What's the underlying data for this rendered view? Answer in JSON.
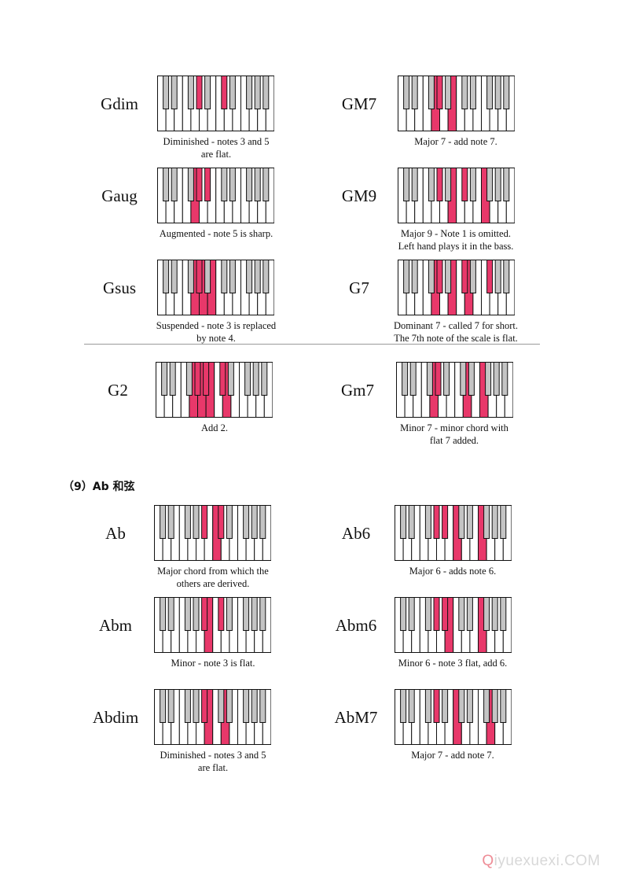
{
  "chords": [
    {
      "id": "gdim",
      "name": "Gdim",
      "caption": [
        "Diminished - notes 3 and 5",
        "are flat."
      ],
      "white_keys": [],
      "black_keys": [
        3,
        5
      ]
    },
    {
      "id": "gm7-major",
      "name": "GM7",
      "caption": [
        "Major 7 - add note 7."
      ],
      "white_keys": [
        4,
        6
      ],
      "black_keys": [
        3
      ]
    },
    {
      "id": "gaug",
      "name": "Gaug",
      "caption": [
        "Augmented - note 5 is sharp."
      ],
      "white_keys": [
        4
      ],
      "black_keys": [
        3,
        4
      ]
    },
    {
      "id": "gm9",
      "name": "GM9",
      "caption": [
        "Major 9 - Note 1 is omitted.",
        "Left hand plays it in the bass."
      ],
      "white_keys": [
        6,
        10
      ],
      "black_keys": [
        3,
        5
      ]
    },
    {
      "id": "gsus",
      "name": "Gsus",
      "caption": [
        "Suspended - note 3 is replaced",
        "by note 4."
      ],
      "white_keys": [
        4,
        5,
        6
      ],
      "black_keys": [
        3
      ]
    },
    {
      "id": "g7",
      "name": "G7",
      "caption": [
        "Dominant 7 - called 7 for short.",
        "The 7th note of the scale is flat."
      ],
      "white_keys": [
        4,
        6,
        8
      ],
      "black_keys": [
        3,
        5,
        7
      ]
    },
    {
      "id": "g2",
      "name": "G2",
      "caption": [
        "Add 2."
      ],
      "white_keys": [
        4,
        5,
        6,
        8
      ],
      "black_keys": [
        3,
        4,
        5
      ]
    },
    {
      "id": "gm7-minor",
      "name": "Gm7",
      "caption": [
        "Minor 7 - minor chord with",
        "flat 7 added."
      ],
      "white_keys": [
        4,
        8,
        10
      ],
      "black_keys": [
        3
      ]
    },
    {
      "id": "ab",
      "name": "Ab",
      "caption": [
        "Major chord from which the",
        "others are derived."
      ],
      "white_keys": [
        7
      ],
      "black_keys": [
        4,
        5
      ]
    },
    {
      "id": "ab6",
      "name": "Ab6",
      "caption": [
        "Major 6 - adds note 6."
      ],
      "white_keys": [
        7,
        10
      ],
      "black_keys": [
        3,
        4
      ]
    },
    {
      "id": "abm",
      "name": "Abm",
      "caption": [
        "Minor - note 3 is flat."
      ],
      "white_keys": [
        6
      ],
      "black_keys": [
        4,
        5
      ]
    },
    {
      "id": "abm6",
      "name": "Abm6",
      "caption": [
        "Minor 6 - note 3 flat, add 6."
      ],
      "white_keys": [
        6,
        10
      ],
      "black_keys": [
        3,
        4
      ]
    },
    {
      "id": "abdim",
      "name": "Abdim",
      "caption": [
        "Diminished - notes 3 and 5",
        "are flat."
      ],
      "white_keys": [
        6,
        8
      ],
      "black_keys": [
        4
      ]
    },
    {
      "id": "abm7-major",
      "name": "AbM7",
      "caption": [
        "Major 7 - add note 7."
      ],
      "white_keys": [
        7,
        11
      ],
      "black_keys": [
        3
      ]
    }
  ],
  "section_heading": "（9）Ab 和弦",
  "watermark": {
    "accent": "Q",
    "rest": "iyuexuexi.COM"
  },
  "colors": {
    "highlight": "#e8386a",
    "black_key": "#c4c4c4",
    "outline": "#111111",
    "watermark": "#d8d8d8",
    "watermark_accent": "#ee8c96"
  }
}
